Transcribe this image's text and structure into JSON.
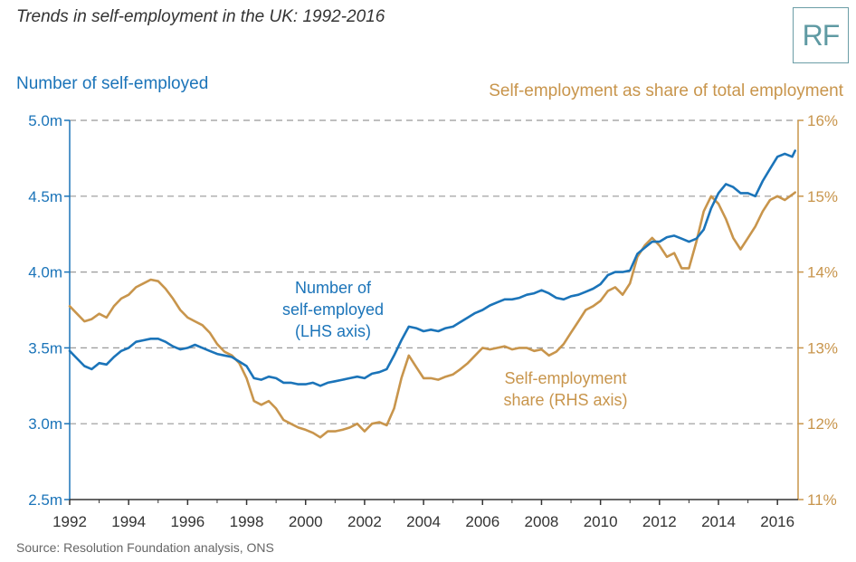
{
  "header": {
    "title": "Trends in self-employment in the UK: 1992-2016",
    "logo_text": "RF"
  },
  "source": "Source: Resolution Foundation analysis, ONS",
  "colors": {
    "lhs": "#1b74b9",
    "rhs": "#c8954c",
    "grid": "#999999",
    "axis": "#333333"
  },
  "chart_data": {
    "type": "line",
    "xlim": [
      1992,
      2016.7
    ],
    "x_ticks": [
      "1992",
      "1994",
      "1996",
      "1998",
      "2000",
      "2002",
      "2004",
      "2006",
      "2008",
      "2010",
      "2012",
      "2014",
      "2016"
    ],
    "y_left": {
      "label": "Number of self-employed",
      "lim": [
        2.5,
        5.0
      ],
      "ticks": [
        "2.5m",
        "3.0m",
        "3.5m",
        "4.0m",
        "4.5m",
        "5.0m"
      ]
    },
    "y_right": {
      "label": "Self-employment as share of total employment",
      "lim": [
        11,
        16
      ],
      "ticks": [
        "11%",
        "12%",
        "13%",
        "14%",
        "15%",
        "16%"
      ]
    },
    "grid": "horizontal-dashed",
    "annotations": [
      {
        "lines": [
          "Number of",
          "self-employed",
          "(LHS axis)"
        ],
        "series": "lhs"
      },
      {
        "lines": [
          "Self-employment",
          "share (RHS axis)"
        ],
        "series": "rhs"
      }
    ],
    "series": [
      {
        "axis": "left",
        "x": [
          1992.0,
          1992.25,
          1992.5,
          1992.75,
          1993.0,
          1993.25,
          1993.5,
          1993.75,
          1994.0,
          1994.25,
          1994.5,
          1994.75,
          1995.0,
          1995.25,
          1995.5,
          1995.75,
          1996.0,
          1996.25,
          1996.5,
          1996.75,
          1997.0,
          1997.25,
          1997.5,
          1997.75,
          1998.0,
          1998.25,
          1998.5,
          1998.75,
          1999.0,
          1999.25,
          1999.5,
          1999.75,
          2000.0,
          2000.25,
          2000.5,
          2000.75,
          2001.0,
          2001.25,
          2001.5,
          2001.75,
          2002.0,
          2002.25,
          2002.5,
          2002.75,
          2003.0,
          2003.25,
          2003.5,
          2003.75,
          2004.0,
          2004.25,
          2004.5,
          2004.75,
          2005.0,
          2005.25,
          2005.5,
          2005.75,
          2006.0,
          2006.25,
          2006.5,
          2006.75,
          2007.0,
          2007.25,
          2007.5,
          2007.75,
          2008.0,
          2008.25,
          2008.5,
          2008.75,
          2009.0,
          2009.25,
          2009.5,
          2009.75,
          2010.0,
          2010.25,
          2010.5,
          2010.75,
          2011.0,
          2011.25,
          2011.5,
          2011.75,
          2012.0,
          2012.25,
          2012.5,
          2012.75,
          2013.0,
          2013.25,
          2013.5,
          2013.75,
          2014.0,
          2014.25,
          2014.5,
          2014.75,
          2015.0,
          2015.25,
          2015.5,
          2015.75,
          2016.0,
          2016.25,
          2016.5,
          2016.6
        ],
        "values": [
          3.48,
          3.43,
          3.38,
          3.36,
          3.4,
          3.39,
          3.44,
          3.48,
          3.5,
          3.54,
          3.55,
          3.56,
          3.56,
          3.54,
          3.51,
          3.49,
          3.5,
          3.52,
          3.5,
          3.48,
          3.46,
          3.45,
          3.44,
          3.41,
          3.38,
          3.3,
          3.29,
          3.31,
          3.3,
          3.27,
          3.27,
          3.26,
          3.26,
          3.27,
          3.25,
          3.27,
          3.28,
          3.29,
          3.3,
          3.31,
          3.3,
          3.33,
          3.34,
          3.36,
          3.45,
          3.55,
          3.64,
          3.63,
          3.61,
          3.62,
          3.61,
          3.63,
          3.64,
          3.67,
          3.7,
          3.73,
          3.75,
          3.78,
          3.8,
          3.82,
          3.82,
          3.83,
          3.85,
          3.86,
          3.88,
          3.86,
          3.83,
          3.82,
          3.84,
          3.85,
          3.87,
          3.89,
          3.92,
          3.98,
          4.0,
          4.0,
          4.01,
          4.12,
          4.16,
          4.2,
          4.2,
          4.23,
          4.24,
          4.22,
          4.2,
          4.22,
          4.28,
          4.42,
          4.52,
          4.58,
          4.56,
          4.52,
          4.52,
          4.5,
          4.6,
          4.68,
          4.76,
          4.78,
          4.76,
          4.8
        ]
      },
      {
        "axis": "right",
        "x": [
          1992.0,
          1992.25,
          1992.5,
          1992.75,
          1993.0,
          1993.25,
          1993.5,
          1993.75,
          1994.0,
          1994.25,
          1994.5,
          1994.75,
          1995.0,
          1995.25,
          1995.5,
          1995.75,
          1996.0,
          1996.25,
          1996.5,
          1996.75,
          1997.0,
          1997.25,
          1997.5,
          1997.75,
          1998.0,
          1998.25,
          1998.5,
          1998.75,
          1999.0,
          1999.25,
          1999.5,
          1999.75,
          2000.0,
          2000.25,
          2000.5,
          2000.75,
          2001.0,
          2001.25,
          2001.5,
          2001.75,
          2002.0,
          2002.25,
          2002.5,
          2002.75,
          2003.0,
          2003.25,
          2003.5,
          2003.75,
          2004.0,
          2004.25,
          2004.5,
          2004.75,
          2005.0,
          2005.25,
          2005.5,
          2005.75,
          2006.0,
          2006.25,
          2006.5,
          2006.75,
          2007.0,
          2007.25,
          2007.5,
          2007.75,
          2008.0,
          2008.25,
          2008.5,
          2008.75,
          2009.0,
          2009.25,
          2009.5,
          2009.75,
          2010.0,
          2010.25,
          2010.5,
          2010.75,
          2011.0,
          2011.25,
          2011.5,
          2011.75,
          2012.0,
          2012.25,
          2012.5,
          2012.75,
          2013.0,
          2013.25,
          2013.5,
          2013.75,
          2014.0,
          2014.25,
          2014.5,
          2014.75,
          2015.0,
          2015.25,
          2015.5,
          2015.75,
          2016.0,
          2016.25,
          2016.5,
          2016.6
        ],
        "values": [
          13.55,
          13.45,
          13.35,
          13.38,
          13.45,
          13.4,
          13.55,
          13.65,
          13.7,
          13.8,
          13.85,
          13.9,
          13.88,
          13.78,
          13.65,
          13.5,
          13.4,
          13.35,
          13.3,
          13.2,
          13.05,
          12.95,
          12.9,
          12.8,
          12.6,
          12.3,
          12.25,
          12.3,
          12.2,
          12.05,
          12.0,
          11.95,
          11.92,
          11.88,
          11.82,
          11.9,
          11.9,
          11.92,
          11.95,
          12.0,
          11.9,
          12.0,
          12.02,
          11.98,
          12.2,
          12.6,
          12.9,
          12.75,
          12.6,
          12.6,
          12.58,
          12.62,
          12.65,
          12.72,
          12.8,
          12.9,
          13.0,
          12.98,
          13.0,
          13.02,
          12.98,
          13.0,
          13.0,
          12.96,
          12.98,
          12.9,
          12.95,
          13.05,
          13.2,
          13.35,
          13.5,
          13.55,
          13.62,
          13.75,
          13.8,
          13.7,
          13.85,
          14.2,
          14.35,
          14.45,
          14.35,
          14.2,
          14.25,
          14.05,
          14.05,
          14.4,
          14.8,
          15.0,
          14.9,
          14.7,
          14.45,
          14.3,
          14.45,
          14.6,
          14.8,
          14.95,
          15.0,
          14.95,
          15.02,
          15.05
        ]
      }
    ]
  }
}
